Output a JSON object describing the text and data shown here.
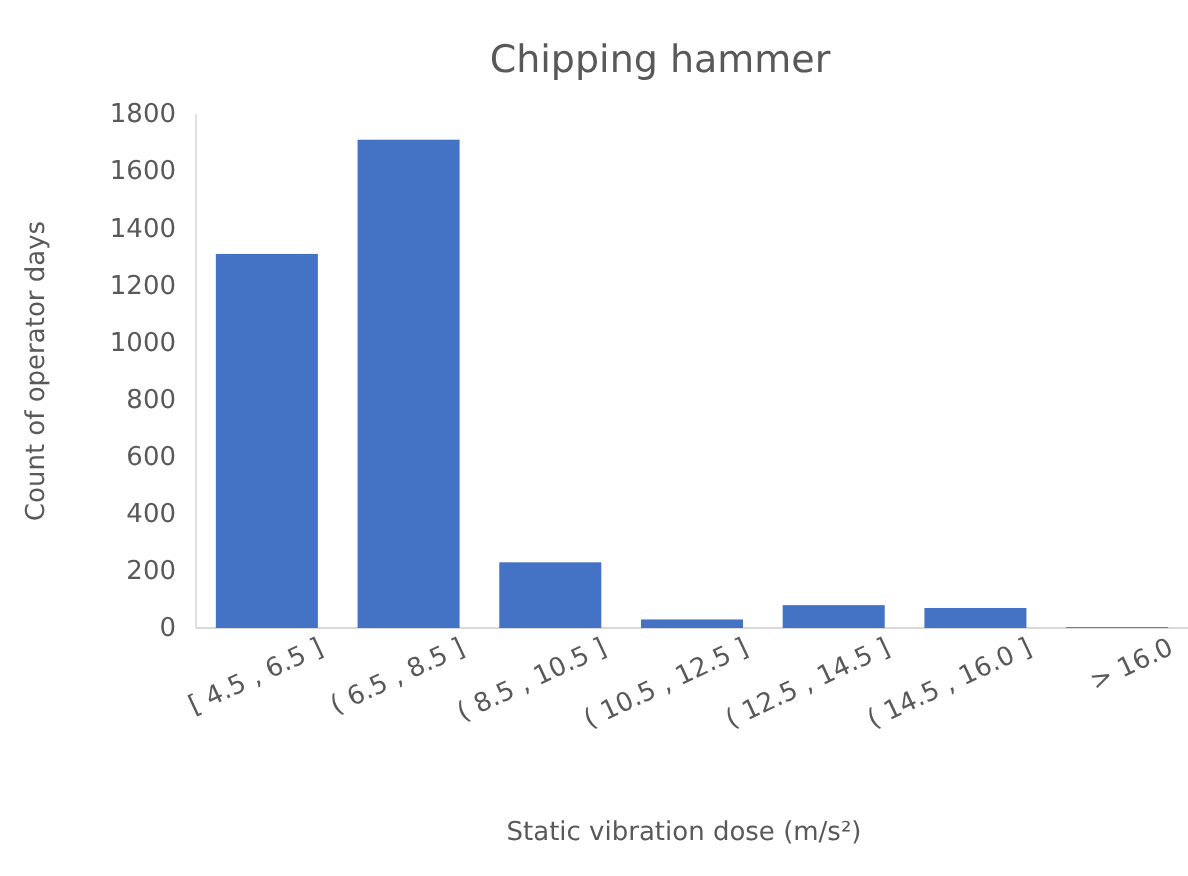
{
  "chart_data": {
    "type": "bar",
    "title": "Chipping hammer",
    "xlabel": "Static vibration dose (m/s²)",
    "ylabel": "Count of operator days",
    "categories": [
      "[ 4.5 , 6.5 ]",
      "( 6.5 , 8.5 ]",
      "( 8.5 , 10.5 ]",
      "( 10.5 , 12.5 ]",
      "( 12.5 , 14.5 ]",
      "( 14.5 , 16.0 ]",
      "> 16.0"
    ],
    "values": [
      1310,
      1710,
      230,
      30,
      80,
      70,
      3
    ],
    "color": "#4472c4",
    "ylim": [
      0,
      1800
    ],
    "yticks": [
      0,
      200,
      400,
      600,
      800,
      1000,
      1200,
      1400,
      1600,
      1800
    ],
    "grid": false
  }
}
